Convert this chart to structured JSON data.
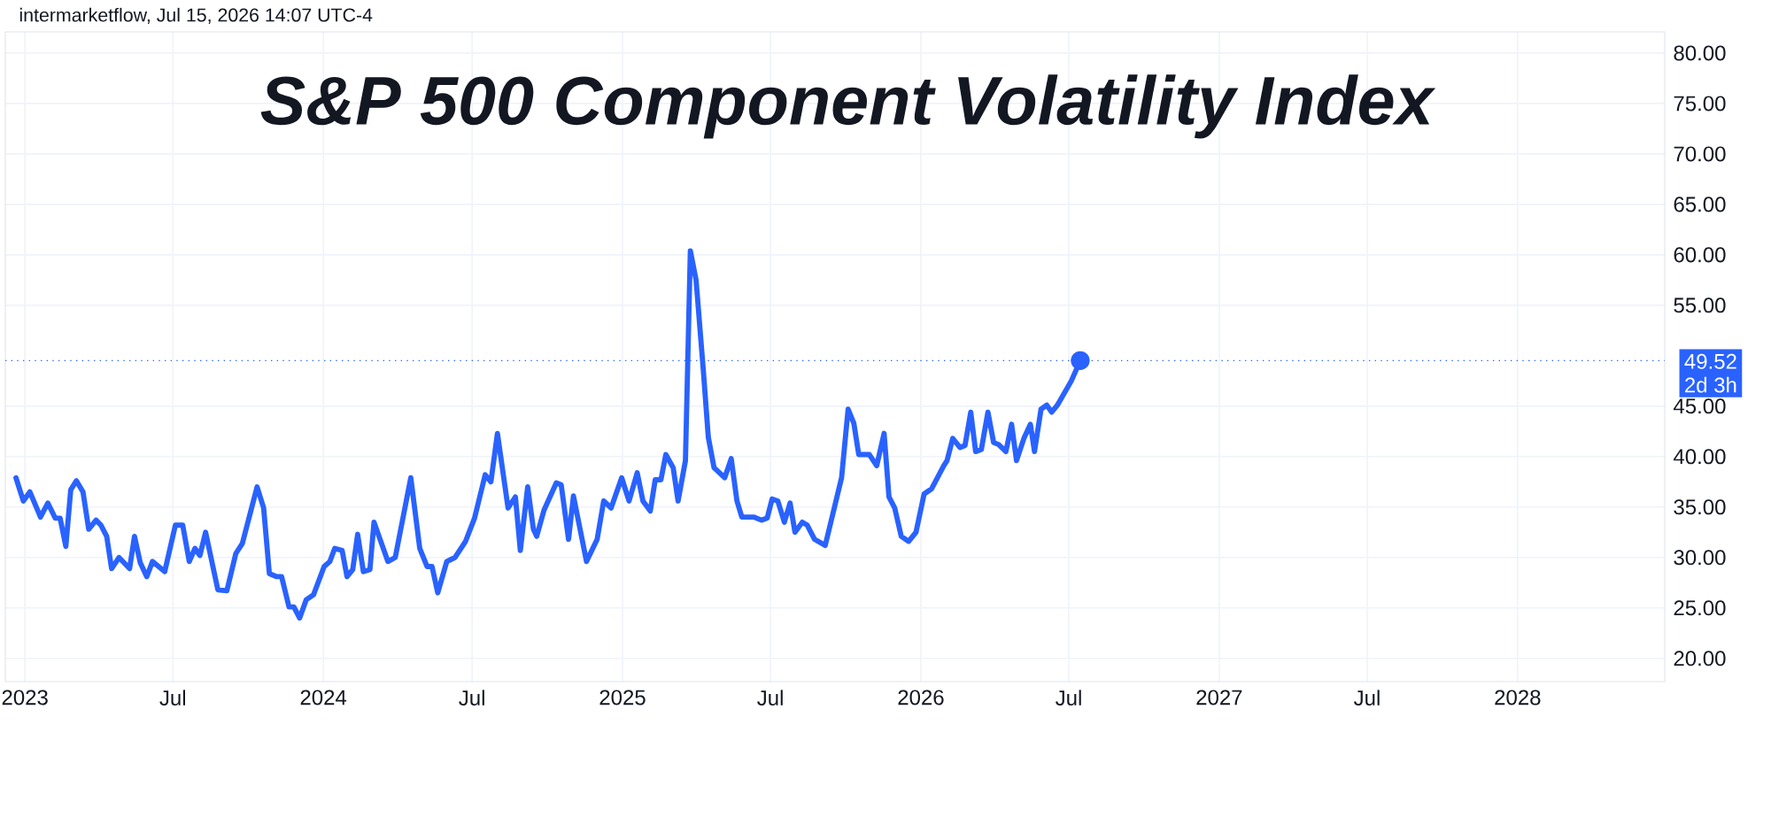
{
  "chart_data": {
    "type": "line",
    "title": "S&P 500 Component Volatility Index",
    "annotations": [
      "intermarketflow, Jul 15, 2026 14:07 UTC-4",
      "2d 3h"
    ],
    "x": [
      "2022-12-21",
      "2022-12-30",
      "2023-01-07",
      "2023-01-20",
      "2023-01-29",
      "2023-02-07",
      "2023-02-13",
      "2023-02-20",
      "2023-02-26",
      "2023-03-05",
      "2023-03-13",
      "2023-03-20",
      "2023-03-29",
      "2023-04-04",
      "2023-04-11",
      "2023-04-17",
      "2023-04-26",
      "2023-05-09",
      "2023-05-15",
      "2023-05-22",
      "2023-05-30",
      "2023-06-06",
      "2023-06-21",
      "2023-07-04",
      "2023-07-13",
      "2023-07-21",
      "2023-07-28",
      "2023-08-03",
      "2023-08-10",
      "2023-08-25",
      "2023-09-05",
      "2023-09-16",
      "2023-09-24",
      "2023-10-12",
      "2023-10-20",
      "2023-10-27",
      "2023-11-05",
      "2023-11-11",
      "2023-11-20",
      "2023-11-26",
      "2023-12-03",
      "2023-12-11",
      "2023-12-20",
      "2024-01-02",
      "2024-01-09",
      "2024-01-15",
      "2024-01-24",
      "2024-01-30",
      "2024-02-06",
      "2024-02-12",
      "2024-02-19",
      "2024-02-27",
      "2024-03-03",
      "2024-03-20",
      "2024-03-29",
      "2024-04-17",
      "2024-04-28",
      "2024-05-07",
      "2024-05-13",
      "2024-05-20",
      "2024-05-31",
      "2024-06-10",
      "2024-06-23",
      "2024-07-04",
      "2024-07-17",
      "2024-07-24",
      "2024-08-01",
      "2024-08-14",
      "2024-08-23",
      "2024-08-29",
      "2024-09-07",
      "2024-09-14",
      "2024-09-18",
      "2024-09-27",
      "2024-10-12",
      "2024-10-18",
      "2024-10-27",
      "2024-11-02",
      "2024-11-18",
      "2024-12-01",
      "2024-12-09",
      "2024-12-18",
      "2024-12-31",
      "2025-01-09",
      "2025-01-19",
      "2025-01-26",
      "2025-02-04",
      "2025-02-10",
      "2025-02-17",
      "2025-02-23",
      "2025-03-04",
      "2025-03-10",
      "2025-03-19",
      "2025-03-25",
      "2025-04-01",
      "2025-04-10",
      "2025-04-16",
      "2025-04-23",
      "2025-05-06",
      "2025-05-14",
      "2025-05-21",
      "2025-05-27",
      "2025-06-11",
      "2025-06-20",
      "2025-06-27",
      "2025-07-03",
      "2025-07-10",
      "2025-07-18",
      "2025-07-25",
      "2025-07-31",
      "2025-08-09",
      "2025-08-15",
      "2025-08-24",
      "2025-09-06",
      "2025-09-26",
      "2025-10-04",
      "2025-10-11",
      "2025-10-17",
      "2025-10-30",
      "2025-11-08",
      "2025-11-17",
      "2025-11-23",
      "2025-11-30",
      "2025-12-08",
      "2025-12-17",
      "2025-12-26",
      "2026-01-05",
      "2026-01-14",
      "2026-01-29",
      "2026-02-02",
      "2026-02-09",
      "2026-02-18",
      "2026-02-24",
      "2026-03-03",
      "2026-03-09",
      "2026-03-16",
      "2026-03-24",
      "2026-03-31",
      "2026-04-06",
      "2026-04-15",
      "2026-04-22",
      "2026-04-28",
      "2026-05-07",
      "2026-05-15",
      "2026-05-20",
      "2026-05-28",
      "2026-06-04",
      "2026-06-10",
      "2026-06-17",
      "2026-07-04",
      "2026-07-15"
    ],
    "series": [
      {
        "color": "#2962ff",
        "values": [
          37.9,
          35.6,
          36.5,
          34.0,
          35.4,
          33.9,
          33.9,
          31.1,
          36.7,
          37.6,
          36.5,
          32.8,
          33.7,
          33.2,
          32.1,
          28.9,
          30.0,
          28.9,
          32.1,
          29.5,
          28.1,
          29.6,
          28.6,
          33.2,
          33.2,
          29.6,
          30.9,
          30.2,
          32.5,
          26.8,
          26.7,
          30.4,
          31.4,
          37.0,
          34.9,
          28.4,
          28.1,
          28.1,
          25.1,
          25.1,
          24.0,
          25.8,
          26.3,
          29.1,
          29.6,
          30.9,
          30.7,
          28.1,
          28.8,
          32.3,
          28.6,
          28.8,
          33.5,
          29.6,
          30.0,
          37.9,
          30.9,
          29.1,
          29.1,
          26.5,
          29.6,
          30.0,
          31.6,
          33.9,
          38.2,
          37.5,
          42.3,
          34.9,
          36.0,
          30.7,
          37.0,
          32.8,
          32.1,
          34.7,
          37.4,
          37.2,
          31.8,
          36.1,
          29.6,
          31.8,
          35.6,
          34.9,
          37.9,
          35.6,
          38.4,
          35.6,
          34.6,
          37.7,
          37.7,
          40.2,
          38.9,
          35.6,
          39.6,
          60.4,
          57.5,
          48.4,
          41.9,
          38.9,
          37.9,
          39.8,
          35.6,
          34.0,
          34.0,
          33.7,
          33.9,
          35.8,
          35.6,
          33.5,
          35.4,
          32.5,
          33.5,
          33.2,
          31.8,
          31.2,
          37.9,
          44.7,
          43.3,
          40.2,
          40.2,
          39.1,
          42.3,
          36.0,
          34.9,
          32.1,
          31.6,
          32.5,
          36.3,
          36.8,
          39.1,
          39.6,
          41.8,
          40.9,
          41.1,
          44.4,
          40.5,
          40.7,
          44.4,
          41.4,
          41.2,
          40.5,
          43.2,
          39.6,
          41.8,
          43.2,
          40.5,
          44.7,
          45.1,
          44.4,
          45.1,
          47.5,
          49.52
        ]
      },
      {
        "type": "scatter",
        "color": "#2962ff",
        "marker": "circle",
        "x": [
          "2026-07-15"
        ],
        "values": [
          49.52
        ]
      }
    ],
    "xlim": [
      "2022-12-08",
      "2028-06-29"
    ],
    "xticks": [
      {
        "value": "2023-01-01",
        "label": "2023"
      },
      {
        "value": "2023-07-01",
        "label": "Jul"
      },
      {
        "value": "2024-01-01",
        "label": "2024"
      },
      {
        "value": "2024-07-01",
        "label": "Jul"
      },
      {
        "value": "2025-01-01",
        "label": "2025"
      },
      {
        "value": "2025-07-01",
        "label": "Jul"
      },
      {
        "value": "2026-01-01",
        "label": "2026"
      },
      {
        "value": "2026-07-01",
        "label": "Jul"
      },
      {
        "value": "2027-01-01",
        "label": "2027"
      },
      {
        "value": "2027-07-01",
        "label": "Jul"
      },
      {
        "value": "2028-01-01",
        "label": "2028"
      }
    ],
    "ylim": [
      17.7,
      82.1
    ],
    "yticks": [
      {
        "value": 20,
        "label": "20.00"
      },
      {
        "value": 25,
        "label": "25.00"
      },
      {
        "value": 30,
        "label": "30.00"
      },
      {
        "value": 35,
        "label": "35.00"
      },
      {
        "value": 40,
        "label": "40.00"
      },
      {
        "value": 45,
        "label": "45.00"
      },
      {
        "value": 55,
        "label": "55.00"
      },
      {
        "value": 60,
        "label": "60.00"
      },
      {
        "value": 65,
        "label": "65.00"
      },
      {
        "value": 70,
        "label": "70.00"
      },
      {
        "value": 75,
        "label": "75.00"
      },
      {
        "value": 80,
        "label": "80.00"
      }
    ],
    "grid": true,
    "ref_lines": [
      {
        "axis": "y",
        "value": 49.52,
        "label": "49.52",
        "color": "#2962ff",
        "line_style": "dotted"
      }
    ]
  }
}
